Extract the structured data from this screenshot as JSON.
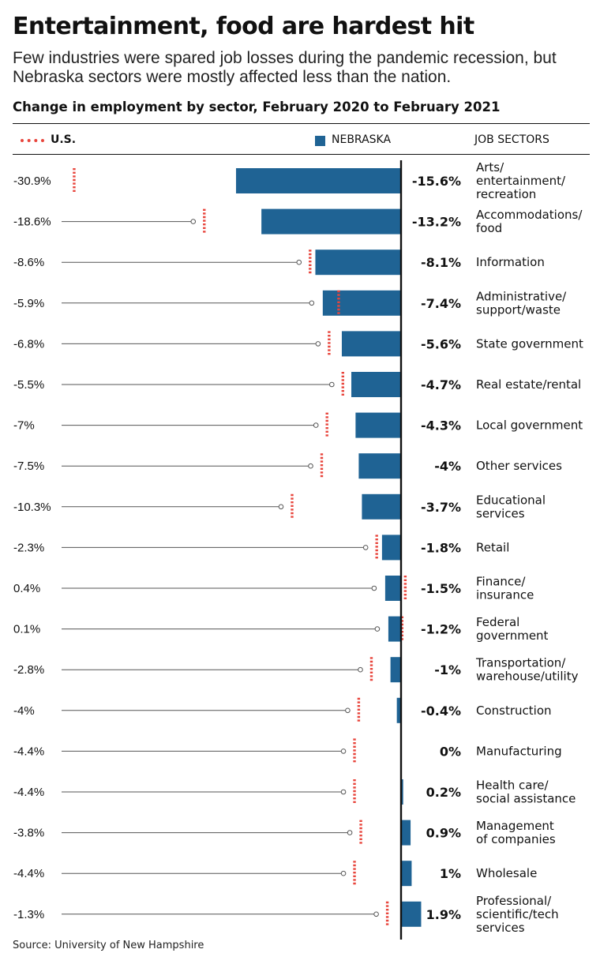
{
  "title": "Entertainment, food are hardest hit",
  "subtitle": "Few industries were spared job losses during the pandemic recession, but Nebraska sectors were mostly affected less than the nation.",
  "chart_heading": "Change in employment by sector, February 2020 to February 2021",
  "legend": {
    "us_label": "U.S.",
    "nebraska_label": "NEBRASKA",
    "sectors_header": "JOB SECTORS"
  },
  "source": "Source: University of New Hampshire",
  "colors": {
    "nebraska": "#1f6394",
    "us": "#e8453c",
    "axis": "#111111",
    "leader": "#555555"
  },
  "chart_data": {
    "type": "bar",
    "title": "Change in employment by sector, February 2020 to February 2021",
    "unit": "%",
    "categories": [
      "Arts/ entertainment/ recreation",
      "Accommodations/ food",
      "Information",
      "Administrative/ support/waste",
      "State government",
      "Real estate/rental",
      "Local government",
      "Other services",
      "Educational services",
      "Retail",
      "Finance/ insurance",
      "Federal government",
      "Transportation/ warehouse/utility",
      "Construction",
      "Manufacturing",
      "Health care/ social assistance",
      "Management of companies",
      "Wholesale",
      "Professional/ scientific/tech services"
    ],
    "category_lines": [
      [
        "Arts/",
        "entertainment/",
        "recreation"
      ],
      [
        "Accommodations/",
        "food"
      ],
      [
        "Information"
      ],
      [
        "Administrative/",
        "support/waste"
      ],
      [
        "State government"
      ],
      [
        "Real estate/rental"
      ],
      [
        "Local government"
      ],
      [
        "Other services"
      ],
      [
        "Educational",
        "services"
      ],
      [
        "Retail"
      ],
      [
        "Finance/",
        "insurance"
      ],
      [
        "Federal",
        "government"
      ],
      [
        "Transportation/",
        "warehouse/utility"
      ],
      [
        "Construction"
      ],
      [
        "Manufacturing"
      ],
      [
        "Health care/",
        "social assistance"
      ],
      [
        "Management",
        "of companies"
      ],
      [
        "Wholesale"
      ],
      [
        "Professional/",
        "scientific/tech",
        "services"
      ]
    ],
    "series": [
      {
        "name": "NEBRASKA",
        "values": [
          -15.6,
          -13.2,
          -8.1,
          -7.4,
          -5.6,
          -4.7,
          -4.3,
          -4.0,
          -3.7,
          -1.8,
          -1.5,
          -1.2,
          -1.0,
          -0.4,
          0,
          0.2,
          0.9,
          1.0,
          1.9
        ],
        "labels": [
          "-15.6%",
          "-13.2%",
          "-8.1%",
          "-7.4%",
          "-5.6%",
          "-4.7%",
          "-4.3%",
          "-4%",
          "-3.7%",
          "-1.8%",
          "-1.5%",
          "-1.2%",
          "-1%",
          "-0.4%",
          "0%",
          "0.2%",
          "0.9%",
          "1%",
          "1.9%"
        ]
      },
      {
        "name": "U.S.",
        "values": [
          -30.9,
          -18.6,
          -8.6,
          -5.9,
          -6.8,
          -5.5,
          -7.0,
          -7.5,
          -10.3,
          -2.3,
          0.4,
          0.1,
          -2.8,
          -4.0,
          -4.4,
          -4.4,
          -3.8,
          -4.4,
          -1.3
        ],
        "labels": [
          "-30.9%",
          "-18.6%",
          "-8.6%",
          "-5.9%",
          "-6.8%",
          "-5.5%",
          "-7%",
          "-7.5%",
          "-10.3%",
          "-2.3%",
          "0.4%",
          "0.1%",
          "-2.8%",
          "-4%",
          "-4.4%",
          "-4.4%",
          "-3.8%",
          "-4.4%",
          "-1.3%"
        ]
      }
    ]
  }
}
